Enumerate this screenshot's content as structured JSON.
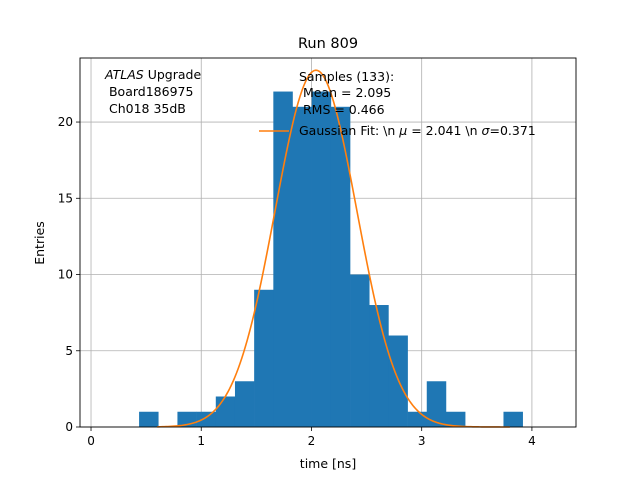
{
  "chart_data": {
    "type": "bar",
    "title": "Run 809",
    "xlabel": "time [ns]",
    "ylabel": "Entries",
    "xlim": [
      -0.1,
      4.4
    ],
    "ylim": [
      0,
      24.2
    ],
    "xticks": [
      0,
      1,
      2,
      3,
      4
    ],
    "yticks": [
      0,
      5,
      10,
      15,
      20
    ],
    "grid": true,
    "legend_position": "upper-right",
    "bin_width": 0.174,
    "bins": [
      {
        "x": 0.436,
        "count": 1
      },
      {
        "x": 0.61,
        "count": 0
      },
      {
        "x": 0.784,
        "count": 1
      },
      {
        "x": 0.958,
        "count": 1
      },
      {
        "x": 1.132,
        "count": 2
      },
      {
        "x": 1.306,
        "count": 3
      },
      {
        "x": 1.48,
        "count": 9
      },
      {
        "x": 1.654,
        "count": 22
      },
      {
        "x": 1.828,
        "count": 21
      },
      {
        "x": 2.002,
        "count": 22
      },
      {
        "x": 2.176,
        "count": 21
      },
      {
        "x": 2.35,
        "count": 10
      },
      {
        "x": 2.524,
        "count": 8
      },
      {
        "x": 2.698,
        "count": 6
      },
      {
        "x": 2.872,
        "count": 1
      },
      {
        "x": 3.046,
        "count": 3
      },
      {
        "x": 3.22,
        "count": 1
      },
      {
        "x": 3.394,
        "count": 0
      },
      {
        "x": 3.568,
        "count": 0
      },
      {
        "x": 3.742,
        "count": 1
      }
    ],
    "fit": {
      "mu": 2.041,
      "sigma": 0.371,
      "amplitude": 23.4,
      "x_range": [
        0.6,
        3.8
      ]
    },
    "colors": {
      "histogram": "#1f77b4",
      "fit": "#ff7f0e"
    },
    "annotation": {
      "atlas_label": "ATLAS",
      "upgrade": " Upgrade",
      "line2": " Board186975",
      "line3": " Ch018 35dB"
    },
    "legend": {
      "samples_line1": "Samples (133):",
      "samples_line2": " Mean = 2.095",
      "samples_line3": " RMS = 0.466",
      "fit_label_pre": "Gaussian Fit: \\n ",
      "fit_mu_symbol": "μ",
      "fit_label_mid": " = 2.041 \\n ",
      "fit_sigma_symbol": "σ",
      "fit_label_post": "=0.371"
    }
  }
}
